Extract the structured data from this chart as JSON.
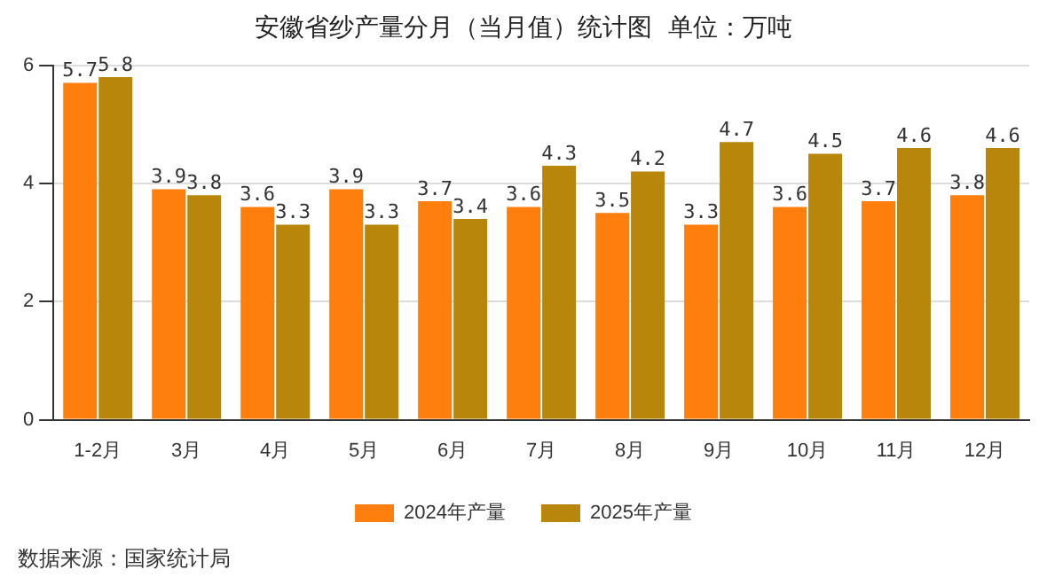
{
  "chart_data": {
    "type": "bar",
    "title": "安徽省纱产量分月（当月值）统计图  单位：万吨",
    "categories": [
      "1-2月",
      "3月",
      "4月",
      "5月",
      "6月",
      "7月",
      "8月",
      "9月",
      "10月",
      "11月",
      "12月"
    ],
    "series": [
      {
        "name": "2024年产量",
        "color": "#ff7f0e",
        "values": [
          5.7,
          3.9,
          3.6,
          3.9,
          3.7,
          3.6,
          3.5,
          3.3,
          3.6,
          3.7,
          3.8
        ]
      },
      {
        "name": "2025年产量",
        "color": "#b8860b",
        "values": [
          5.8,
          3.8,
          3.3,
          3.3,
          3.4,
          4.3,
          4.2,
          4.7,
          4.5,
          4.6,
          4.6
        ]
      }
    ],
    "ylim": [
      0,
      6
    ],
    "yticks": [
      0,
      2,
      4,
      6
    ],
    "grid": "y",
    "legend": "bottom",
    "data_labels": true,
    "annotations": [
      "数据来源：国家统计局"
    ]
  }
}
